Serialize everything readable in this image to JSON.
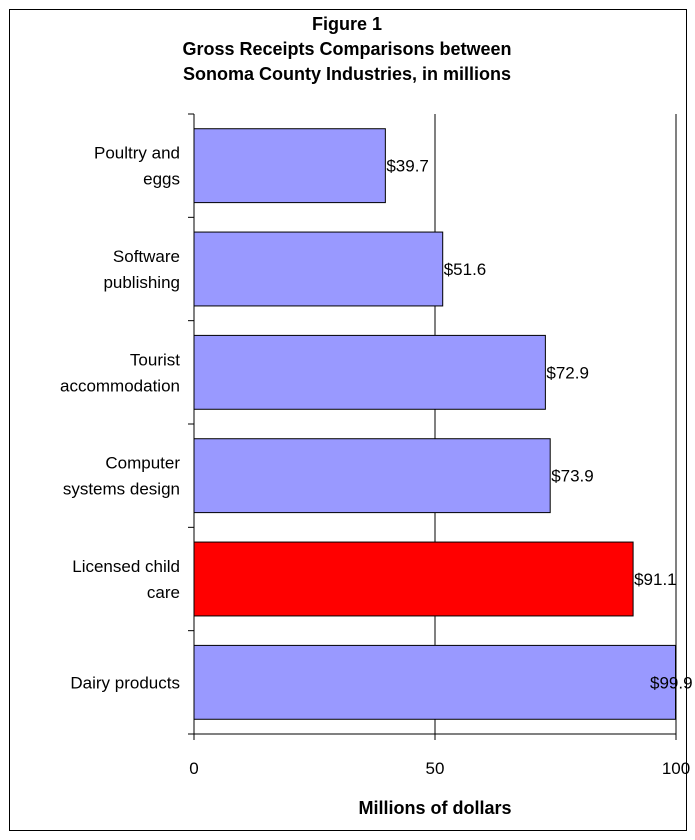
{
  "chart_data": {
    "type": "bar",
    "orientation": "horizontal",
    "title_lines": [
      "Figure 1",
      "Gross Receipts Comparisons between",
      "Sonoma County Industries, in millions"
    ],
    "categories": [
      [
        "Poultry and",
        "eggs"
      ],
      [
        "Software",
        "publishing"
      ],
      [
        "Tourist",
        "accommodation"
      ],
      [
        "Computer",
        "systems design"
      ],
      [
        "Licensed child",
        "care"
      ],
      [
        "Dairy products"
      ]
    ],
    "values": [
      39.7,
      51.6,
      72.9,
      73.9,
      91.1,
      99.9
    ],
    "value_labels": [
      "$39.7",
      "$51.6",
      "$72.9",
      "$73.9",
      "$91.1",
      "$99.9"
    ],
    "highlight_index": 4,
    "xlabel": "Millions of dollars",
    "xlim": [
      0,
      100
    ],
    "xticks": [
      0,
      50,
      100
    ],
    "xtick_labels": [
      "0",
      "50",
      "100"
    ],
    "grid": "vertical",
    "legend": "none"
  },
  "colors": {
    "bar": "#9999ff",
    "highlight": "#ff0000",
    "grid": "#000000",
    "background": "#ffffff"
  }
}
